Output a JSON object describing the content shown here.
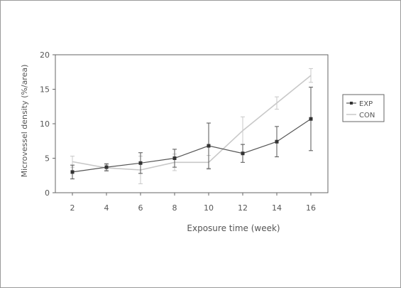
{
  "chart_data": {
    "type": "line",
    "title": "",
    "xlabel": "Exposure time (week)",
    "ylabel": "Microvessel density (%/area)",
    "x": [
      2,
      4,
      6,
      8,
      10,
      12,
      14,
      16
    ],
    "xlim": [
      1,
      17
    ],
    "ylim": [
      0,
      20
    ],
    "xticks": [
      "2",
      "4",
      "6",
      "8",
      "10",
      "12",
      "14",
      "16"
    ],
    "yticks": [
      "0",
      "5",
      "10",
      "15",
      "20"
    ],
    "grid": false,
    "legend_position": "right",
    "series": [
      {
        "name": "EXP",
        "color": "#555555",
        "marker": "square",
        "values": [
          3.0,
          3.7,
          4.3,
          5.0,
          6.8,
          5.7,
          7.4,
          10.7
        ],
        "errors": [
          1.0,
          0.5,
          1.5,
          1.3,
          3.3,
          1.3,
          2.2,
          4.6
        ]
      },
      {
        "name": "CON",
        "color": "#c8c8c8",
        "marker": "none",
        "values": [
          4.5,
          3.6,
          3.3,
          4.4,
          4.4,
          9.0,
          13.0,
          17.0
        ],
        "errors": [
          0.8,
          0.5,
          2.0,
          1.2,
          1.0,
          2.0,
          0.9,
          1.0
        ]
      }
    ]
  }
}
